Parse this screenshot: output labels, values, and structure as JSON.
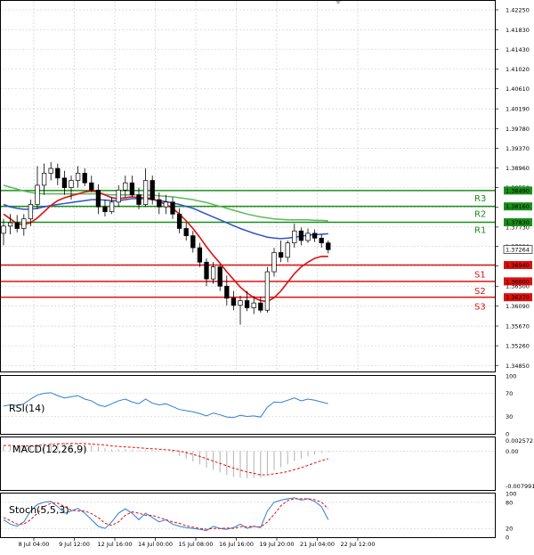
{
  "chart_data": {
    "type": "candlestick",
    "colors": {
      "support": "#e01010",
      "resistance": "#1a8f1a",
      "ma_fast": "#e01010",
      "ma_mid": "#3050d0",
      "ma_slow": "#5cb85c",
      "indicator_line": "#2f7fd0",
      "macd_signal": "#e01010",
      "stoch_signal": "#e01010",
      "candle_bull_body": "#ffffff",
      "candle_bear_body": "#000000",
      "grid": "#c9c9c9"
    },
    "price_axis": {
      "ylim": [
        1.34725,
        1.4238
      ],
      "ticks": [
        "1.42250",
        "1.41830",
        "1.41430",
        "1.41020",
        "1.40610",
        "1.40190",
        "1.39780",
        "1.39370",
        "1.38960",
        "1.38550",
        "1.38140",
        "1.37730",
        "1.37330",
        "1.36920",
        "1.36500",
        "1.36090",
        "1.35670",
        "1.35260",
        "1.34850"
      ]
    },
    "current_price": "1.37264",
    "levels": [
      {
        "name": "R3",
        "value": 1.3849,
        "price_label": "1.38490",
        "kind": "resistance"
      },
      {
        "name": "R2",
        "value": 1.3816,
        "price_label": "1.38160",
        "kind": "resistance"
      },
      {
        "name": "R1",
        "value": 1.3783,
        "price_label": "1.37830",
        "kind": "resistance"
      },
      {
        "name": "S1",
        "value": 1.3694,
        "price_label": "1.36940",
        "kind": "support"
      },
      {
        "name": "S2",
        "value": 1.366,
        "price_label": "1.36600",
        "kind": "support"
      },
      {
        "name": "S3",
        "value": 1.3627,
        "price_label": "1.36270",
        "kind": "support"
      }
    ],
    "time_labels": [
      "8 Jul 04:00",
      "9 Jul 12:00",
      "12 Jul 16:00",
      "14 Jul 00:00",
      "15 Jul 08:00",
      "16 Jul 16:00",
      "19 Jul 20:00",
      "21 Jul 04:00",
      "22 Jul 12:00"
    ],
    "candles": [
      {
        "o": 1.376,
        "h": 1.379,
        "l": 1.3735,
        "c": 1.3775
      },
      {
        "o": 1.3775,
        "h": 1.38,
        "l": 1.3758,
        "c": 1.3782
      },
      {
        "o": 1.3782,
        "h": 1.3798,
        "l": 1.3762,
        "c": 1.377
      },
      {
        "o": 1.377,
        "h": 1.38,
        "l": 1.3755,
        "c": 1.379
      },
      {
        "o": 1.379,
        "h": 1.383,
        "l": 1.3775,
        "c": 1.382
      },
      {
        "o": 1.382,
        "h": 1.39,
        "l": 1.381,
        "c": 1.386
      },
      {
        "o": 1.386,
        "h": 1.3905,
        "l": 1.384,
        "c": 1.3885
      },
      {
        "o": 1.3885,
        "h": 1.3908,
        "l": 1.387,
        "c": 1.3895
      },
      {
        "o": 1.3895,
        "h": 1.3905,
        "l": 1.386,
        "c": 1.3875
      },
      {
        "o": 1.3875,
        "h": 1.389,
        "l": 1.384,
        "c": 1.3855
      },
      {
        "o": 1.3855,
        "h": 1.388,
        "l": 1.383,
        "c": 1.387
      },
      {
        "o": 1.387,
        "h": 1.39,
        "l": 1.3855,
        "c": 1.3885
      },
      {
        "o": 1.3885,
        "h": 1.3895,
        "l": 1.3858,
        "c": 1.3865
      },
      {
        "o": 1.3865,
        "h": 1.388,
        "l": 1.3845,
        "c": 1.385
      },
      {
        "o": 1.385,
        "h": 1.3862,
        "l": 1.38,
        "c": 1.3815
      },
      {
        "o": 1.3815,
        "h": 1.383,
        "l": 1.3795,
        "c": 1.3805
      },
      {
        "o": 1.3805,
        "h": 1.3835,
        "l": 1.38,
        "c": 1.3825
      },
      {
        "o": 1.3825,
        "h": 1.386,
        "l": 1.3815,
        "c": 1.385
      },
      {
        "o": 1.385,
        "h": 1.388,
        "l": 1.3835,
        "c": 1.3865
      },
      {
        "o": 1.3865,
        "h": 1.388,
        "l": 1.3835,
        "c": 1.384
      },
      {
        "o": 1.384,
        "h": 1.3855,
        "l": 1.381,
        "c": 1.382
      },
      {
        "o": 1.382,
        "h": 1.3895,
        "l": 1.3815,
        "c": 1.387
      },
      {
        "o": 1.387,
        "h": 1.388,
        "l": 1.382,
        "c": 1.383
      },
      {
        "o": 1.383,
        "h": 1.3845,
        "l": 1.38,
        "c": 1.3815
      },
      {
        "o": 1.3815,
        "h": 1.384,
        "l": 1.38,
        "c": 1.3825
      },
      {
        "o": 1.3825,
        "h": 1.3835,
        "l": 1.379,
        "c": 1.38
      },
      {
        "o": 1.38,
        "h": 1.3812,
        "l": 1.376,
        "c": 1.377
      },
      {
        "o": 1.377,
        "h": 1.3782,
        "l": 1.3745,
        "c": 1.3755
      },
      {
        "o": 1.3755,
        "h": 1.3765,
        "l": 1.372,
        "c": 1.373
      },
      {
        "o": 1.373,
        "h": 1.374,
        "l": 1.369,
        "c": 1.37
      },
      {
        "o": 1.37,
        "h": 1.3708,
        "l": 1.365,
        "c": 1.3665
      },
      {
        "o": 1.3665,
        "h": 1.37,
        "l": 1.3655,
        "c": 1.369
      },
      {
        "o": 1.369,
        "h": 1.3695,
        "l": 1.364,
        "c": 1.365
      },
      {
        "o": 1.365,
        "h": 1.3672,
        "l": 1.361,
        "c": 1.3625
      },
      {
        "o": 1.3625,
        "h": 1.364,
        "l": 1.36,
        "c": 1.361
      },
      {
        "o": 1.361,
        "h": 1.363,
        "l": 1.357,
        "c": 1.362
      },
      {
        "o": 1.362,
        "h": 1.364,
        "l": 1.3598,
        "c": 1.3605
      },
      {
        "o": 1.3605,
        "h": 1.363,
        "l": 1.3592,
        "c": 1.3615
      },
      {
        "o": 1.3615,
        "h": 1.3628,
        "l": 1.3595,
        "c": 1.36
      },
      {
        "o": 1.36,
        "h": 1.369,
        "l": 1.3595,
        "c": 1.368
      },
      {
        "o": 1.368,
        "h": 1.373,
        "l": 1.367,
        "c": 1.372
      },
      {
        "o": 1.372,
        "h": 1.3745,
        "l": 1.37,
        "c": 1.371
      },
      {
        "o": 1.371,
        "h": 1.3745,
        "l": 1.37,
        "c": 1.374
      },
      {
        "o": 1.374,
        "h": 1.378,
        "l": 1.373,
        "c": 1.3765
      },
      {
        "o": 1.3765,
        "h": 1.3772,
        "l": 1.3735,
        "c": 1.3745
      },
      {
        "o": 1.3745,
        "h": 1.377,
        "l": 1.374,
        "c": 1.376
      },
      {
        "o": 1.376,
        "h": 1.3768,
        "l": 1.3742,
        "c": 1.375
      },
      {
        "o": 1.375,
        "h": 1.3758,
        "l": 1.373,
        "c": 1.374
      },
      {
        "o": 1.374,
        "h": 1.3745,
        "l": 1.3718,
        "c": 1.3726
      }
    ],
    "moving_averages": {
      "fast": [
        1.38,
        1.379,
        1.378,
        1.3778,
        1.3782,
        1.3792,
        1.3805,
        1.3818,
        1.3828,
        1.3834,
        1.3838,
        1.3842,
        1.3846,
        1.3848,
        1.3846,
        1.384,
        1.3834,
        1.3832,
        1.3834,
        1.3836,
        1.3834,
        1.3834,
        1.3832,
        1.3826,
        1.382,
        1.3812,
        1.38,
        1.3786,
        1.377,
        1.3752,
        1.3732,
        1.3714,
        1.3698,
        1.368,
        1.3664,
        1.3648,
        1.3636,
        1.3626,
        1.362,
        1.3618,
        1.3626,
        1.364,
        1.3658,
        1.3676,
        1.369,
        1.37,
        1.3708,
        1.3712,
        1.3712
      ],
      "mid": [
        1.382,
        1.3815,
        1.3812,
        1.381,
        1.381,
        1.3812,
        1.3815,
        1.3818,
        1.382,
        1.3822,
        1.3824,
        1.3826,
        1.3828,
        1.383,
        1.383,
        1.3829,
        1.3828,
        1.3828,
        1.383,
        1.3832,
        1.3832,
        1.3832,
        1.383,
        1.3828,
        1.3826,
        1.3823,
        1.382,
        1.3816,
        1.3812,
        1.3806,
        1.38,
        1.3794,
        1.3788,
        1.3782,
        1.3776,
        1.377,
        1.3765,
        1.376,
        1.3756,
        1.3752,
        1.375,
        1.3749,
        1.375,
        1.3752,
        1.3754,
        1.3756,
        1.3757,
        1.3758,
        1.3759
      ],
      "slow": [
        1.386,
        1.3856,
        1.3852,
        1.3848,
        1.3845,
        1.3843,
        1.3842,
        1.3842,
        1.3842,
        1.3842,
        1.3842,
        1.3842,
        1.3842,
        1.3842,
        1.3842,
        1.3841,
        1.384,
        1.384,
        1.384,
        1.384,
        1.384,
        1.384,
        1.3839,
        1.3838,
        1.3837,
        1.3836,
        1.3834,
        1.3832,
        1.383,
        1.3827,
        1.3824,
        1.382,
        1.3816,
        1.3812,
        1.3808,
        1.3804,
        1.38,
        1.3797,
        1.3794,
        1.3792,
        1.379,
        1.3789,
        1.3788,
        1.3788,
        1.3788,
        1.3788,
        1.3787,
        1.3787,
        1.3786
      ]
    },
    "rsi": {
      "label": "RSI(14)",
      "ylim": [
        0,
        100
      ],
      "ticks": [
        "100",
        "70",
        "30",
        "0"
      ],
      "values": [
        48,
        50,
        49,
        52,
        60,
        67,
        70,
        71,
        66,
        62,
        64,
        66,
        60,
        57,
        50,
        47,
        52,
        57,
        60,
        55,
        52,
        60,
        53,
        50,
        52,
        47,
        42,
        40,
        38,
        35,
        31,
        36,
        33,
        29,
        28,
        32,
        30,
        31,
        29,
        46,
        55,
        54,
        58,
        62,
        57,
        60,
        58,
        55,
        52
      ]
    },
    "macd": {
      "label": "MACD(12,26,9)",
      "ticks": [
        "0.002572",
        "0.00",
        "-0.007991"
      ],
      "ylim": [
        -0.0082,
        0.0029
      ],
      "histogram": [
        0.0012,
        0.0011,
        0.001,
        0.001,
        0.0012,
        0.0015,
        0.0017,
        0.0019,
        0.0019,
        0.0018,
        0.0017,
        0.0017,
        0.0015,
        0.0013,
        0.001,
        0.0006,
        0.0004,
        0.0004,
        0.0004,
        0.0003,
        0.0002,
        0.0003,
        0.0002,
        0.0001,
        0.0,
        -0.0004,
        -0.001,
        -0.0016,
        -0.0022,
        -0.0028,
        -0.0035,
        -0.004,
        -0.0045,
        -0.005,
        -0.0054,
        -0.0056,
        -0.0057,
        -0.0057,
        -0.0056,
        -0.0048,
        -0.004,
        -0.0034,
        -0.0028,
        -0.0021,
        -0.0016,
        -0.0011,
        -0.0007,
        -0.0004,
        -0.0002
      ],
      "signal": [
        0.0012,
        0.0012,
        0.0011,
        0.0011,
        0.0011,
        0.0012,
        0.0013,
        0.0014,
        0.0015,
        0.0016,
        0.0016,
        0.0016,
        0.0016,
        0.0015,
        0.0014,
        0.0013,
        0.0011,
        0.001,
        0.0009,
        0.0008,
        0.0007,
        0.0006,
        0.0005,
        0.0004,
        0.0003,
        0.0002,
        0.0,
        -0.0003,
        -0.0007,
        -0.0011,
        -0.0016,
        -0.0021,
        -0.0026,
        -0.0031,
        -0.0036,
        -0.004,
        -0.0044,
        -0.0047,
        -0.005,
        -0.005,
        -0.0048,
        -0.0046,
        -0.0043,
        -0.0039,
        -0.0035,
        -0.003,
        -0.0025,
        -0.002,
        -0.0016
      ]
    },
    "stoch": {
      "label": "Stoch(5,5,3)",
      "ylim": [
        0,
        100
      ],
      "ticks": [
        "100",
        "80",
        "20",
        "0"
      ],
      "main": [
        40,
        30,
        25,
        35,
        60,
        75,
        80,
        82,
        70,
        55,
        60,
        66,
        55,
        40,
        25,
        20,
        35,
        55,
        65,
        55,
        40,
        55,
        45,
        35,
        40,
        30,
        25,
        22,
        20,
        18,
        15,
        25,
        20,
        18,
        22,
        30,
        20,
        25,
        22,
        60,
        80,
        85,
        88,
        90,
        85,
        88,
        82,
        70,
        40
      ],
      "signal": [
        45,
        38,
        30,
        30,
        40,
        55,
        70,
        78,
        78,
        70,
        62,
        60,
        60,
        54,
        45,
        32,
        27,
        35,
        50,
        58,
        55,
        50,
        50,
        45,
        40,
        35,
        32,
        26,
        23,
        20,
        18,
        20,
        20,
        21,
        20,
        24,
        24,
        25,
        23,
        35,
        52,
        72,
        84,
        88,
        88,
        88,
        86,
        80,
        65
      ]
    }
  }
}
